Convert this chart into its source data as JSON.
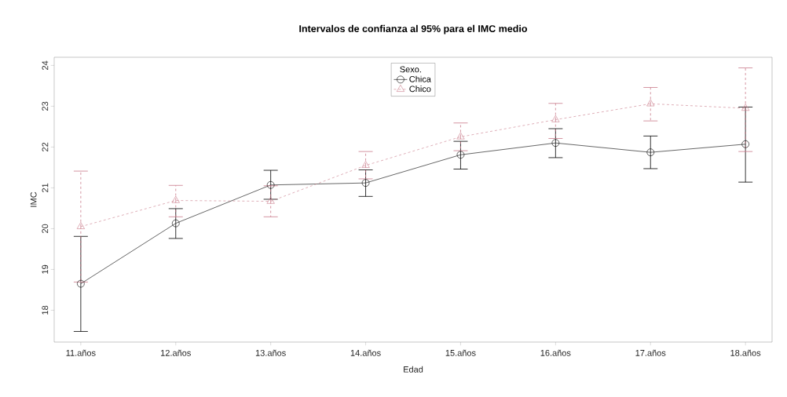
{
  "chart_data": {
    "type": "line",
    "title": "Intervalos de confianza al 95% para el IMC medio",
    "xlabel": "Edad",
    "ylabel": "IMC",
    "legend_title": "Sexo.",
    "legend": "top",
    "categories": [
      "11.años",
      "12.años",
      "13.años",
      "14.años",
      "15.años",
      "16.años",
      "17.años",
      "18.años"
    ],
    "ylim": [
      17.22,
      24.2
    ],
    "yticks": [
      18,
      19,
      20,
      21,
      22,
      23,
      24
    ],
    "grid": false,
    "series": [
      {
        "name": "Chica",
        "color": "#000000",
        "marker": "circle",
        "line_style": "solid",
        "values": [
          18.65,
          20.13,
          21.07,
          21.12,
          21.81,
          22.1,
          21.87,
          22.07
        ],
        "errors": [
          [
            17.48,
            19.81
          ],
          [
            19.76,
            20.49
          ],
          [
            20.72,
            21.43
          ],
          [
            20.79,
            21.44
          ],
          [
            21.46,
            22.14
          ],
          [
            21.74,
            22.45
          ],
          [
            21.47,
            22.27
          ],
          [
            21.14,
            22.98
          ]
        ]
      },
      {
        "name": "Chico",
        "color": "#c97a8a",
        "marker": "triangle",
        "line_style": "dashed",
        "values": [
          20.05,
          20.69,
          20.67,
          21.55,
          22.25,
          22.67,
          23.06,
          22.95
        ],
        "errors": [
          [
            18.69,
            21.41
          ],
          [
            20.29,
            21.06
          ],
          [
            20.29,
            21.05
          ],
          [
            21.22,
            21.89
          ],
          [
            21.91,
            22.59
          ],
          [
            22.21,
            23.07
          ],
          [
            22.64,
            23.46
          ],
          [
            21.89,
            23.94
          ]
        ]
      }
    ]
  }
}
